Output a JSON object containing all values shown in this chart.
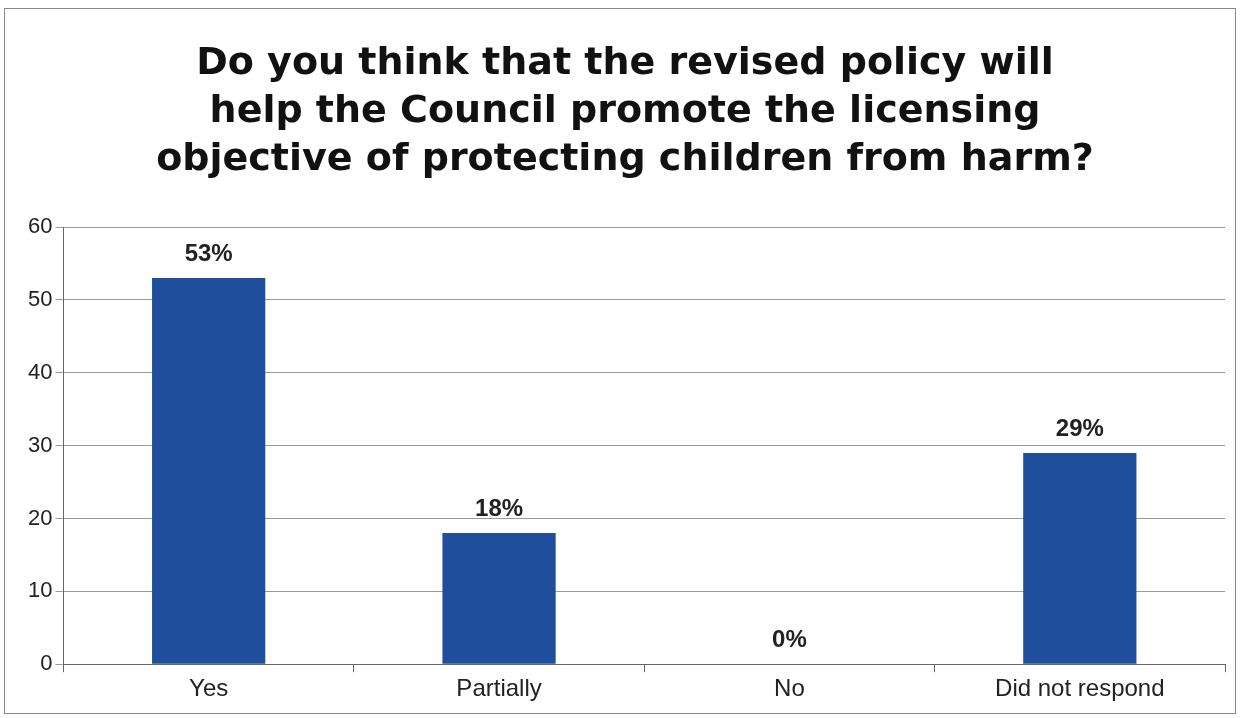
{
  "chart_data": {
    "type": "bar",
    "title": "Do you think that the revised policy will help the Council promote the licensing objective of protecting children from harm?",
    "categories": [
      "Yes",
      "Partially",
      "No",
      "Did not respond"
    ],
    "values": [
      53,
      18,
      0,
      29
    ],
    "value_labels": [
      "53%",
      "18%",
      "0%",
      "29%"
    ],
    "color": "#1f4e9c",
    "ylim": [
      0,
      60
    ],
    "yticks": [
      0,
      10,
      20,
      30,
      40,
      50,
      60
    ],
    "grid": "y",
    "legend": false
  }
}
